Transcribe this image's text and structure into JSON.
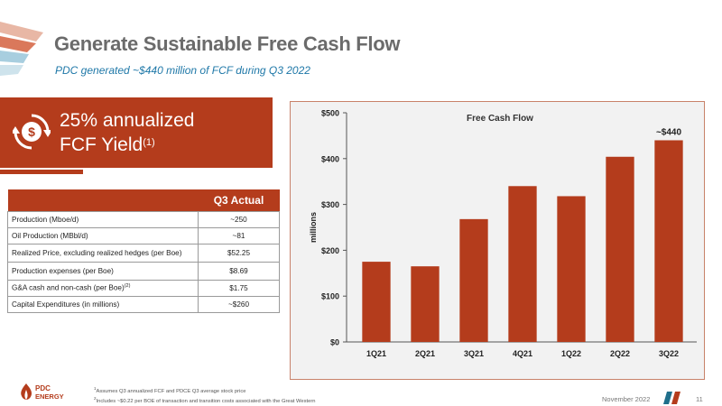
{
  "header": {
    "title": "Generate Sustainable Free Cash Flow",
    "subtitle": "PDC generated ~$440 million of FCF during Q3 2022"
  },
  "kpi": {
    "line1": "25% annualized",
    "line2": "FCF Yield",
    "footnote_ref": "(1)",
    "icon": "dollar-cycle-icon"
  },
  "table": {
    "column_header": "Q3 Actual",
    "rows": [
      {
        "label": "Production (Mboe/d)",
        "sup": "",
        "value": "~250"
      },
      {
        "label": "Oil Production (MBbl/d)",
        "sup": "",
        "value": "~81"
      },
      {
        "label": "Realized Price, excluding realized hedges (per Boe)",
        "sup": "",
        "value": "$52.25"
      },
      {
        "label": "Production expenses (per Boe)",
        "sup": "",
        "value": "$8.69"
      },
      {
        "label": "G&A cash and non-cash (per Boe)",
        "sup": "(2)",
        "value": "$1.75"
      },
      {
        "label": "Capital Expenditures (in millions)",
        "sup": "",
        "value": "~$260"
      }
    ]
  },
  "chart_data": {
    "type": "bar",
    "title": "Free Cash Flow",
    "ylabel": "millions",
    "categories": [
      "1Q21",
      "2Q21",
      "3Q21",
      "4Q21",
      "1Q22",
      "2Q22",
      "3Q22"
    ],
    "values": [
      175,
      165,
      268,
      340,
      318,
      404,
      440
    ],
    "ylim": [
      0,
      500
    ],
    "yticks": [
      "$0",
      "$100",
      "$200",
      "$300",
      "$400",
      "$500"
    ],
    "annotation": {
      "category": "3Q22",
      "text": "~$440"
    },
    "bar_color": "#b43c1c",
    "grid": false
  },
  "footer": {
    "logo_line1": "PDC",
    "logo_line2": "ENERGY",
    "footnote1_marker": "1",
    "footnote1": "Assumes Q3 annualized FCF and PDCE Q3 average stock price",
    "footnote2_marker": "2",
    "footnote2": "Includes ~$0.22 per BOE of transaction and transition costs associated with the Great Western",
    "date": "November 2022",
    "page": "11"
  },
  "colors": {
    "brand_orange": "#b43c1c",
    "title_gray": "#6b6b6b",
    "subtitle_blue": "#1f78a8",
    "accent_teal": "#1f6f8b"
  }
}
